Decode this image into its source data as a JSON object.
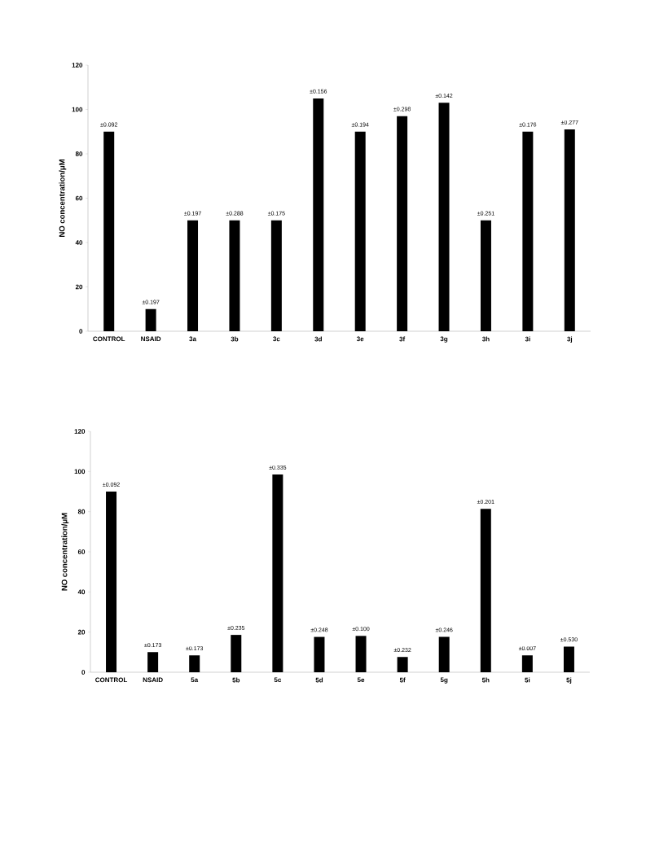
{
  "chart_data": [
    {
      "type": "bar",
      "ylabel": "NO concentration/μM",
      "categories": [
        "CONTROL",
        "NSAID",
        "3a",
        "3b",
        "3c",
        "3d",
        "3e",
        "3f",
        "3g",
        "3h",
        "3i",
        "3j"
      ],
      "values": [
        90,
        10,
        50,
        50,
        50,
        105,
        90,
        97,
        103,
        50,
        90,
        91
      ],
      "color": "#000000",
      "ylim": [
        0,
        120
      ],
      "yticks": [
        0,
        20,
        40,
        60,
        80,
        100,
        120
      ],
      "annotations": [
        {
          "text": "±0.092",
          "x": "CONTROL",
          "y": 90
        },
        {
          "text": "±0.197",
          "x": "NSAID",
          "y": 10
        },
        {
          "text": "±0.197",
          "x": "3a",
          "y": 50
        },
        {
          "text": "±0.288",
          "x": "3b",
          "y": 50
        },
        {
          "text": "±0.175",
          "x": "3c",
          "y": 50
        },
        {
          "text": "±0.156",
          "x": "3d",
          "y": 105
        },
        {
          "text": "±0.194",
          "x": "3e",
          "y": 90
        },
        {
          "text": "±0.298",
          "x": "3f",
          "y": 97
        },
        {
          "text": "±0.142",
          "x": "3g",
          "y": 103
        },
        {
          "text": "±0.251",
          "x": "3h",
          "y": 50
        },
        {
          "text": "±0.176",
          "x": "3i",
          "y": 90
        },
        {
          "text": "±0.277",
          "x": "3j",
          "y": 91
        }
      ]
    },
    {
      "type": "bar",
      "ylabel": "NO concentration/μM",
      "categories": [
        "CONTROL",
        "NSAID",
        "5a",
        "5b",
        "5c",
        "5d",
        "5e",
        "5f",
        "5g",
        "5h",
        "5i",
        "5j"
      ],
      "values": [
        90,
        10,
        8.4,
        18.6,
        98.5,
        17.6,
        18.1,
        7.6,
        17.6,
        81.4,
        8.4,
        12.8
      ],
      "color": "#000000",
      "ylim": [
        0,
        120
      ],
      "yticks": [
        0,
        20,
        40,
        60,
        80,
        100,
        120
      ],
      "annotations": [
        {
          "text": "±0.092",
          "x": "CONTROL",
          "y": 90
        },
        {
          "text": "±0.173",
          "x": "NSAID",
          "y": 10
        },
        {
          "text": "±0.173",
          "x": "5a",
          "y": 8.4
        },
        {
          "text": "±0.235",
          "x": "5b",
          "y": 18.6
        },
        {
          "text": "±0.335",
          "x": "5c",
          "y": 98.5
        },
        {
          "text": "±0.248",
          "x": "5d",
          "y": 17.6
        },
        {
          "text": "±0.100",
          "x": "5e",
          "y": 18.1
        },
        {
          "text": "±0.232",
          "x": "5f",
          "y": 7.6
        },
        {
          "text": "±0.246",
          "x": "5g",
          "y": 17.6
        },
        {
          "text": "±0.201",
          "x": "5h",
          "y": 81.4
        },
        {
          "text": "±0.007",
          "x": "5i",
          "y": 8.4
        },
        {
          "text": "±0.530",
          "x": "5j",
          "y": 12.8
        }
      ]
    }
  ]
}
